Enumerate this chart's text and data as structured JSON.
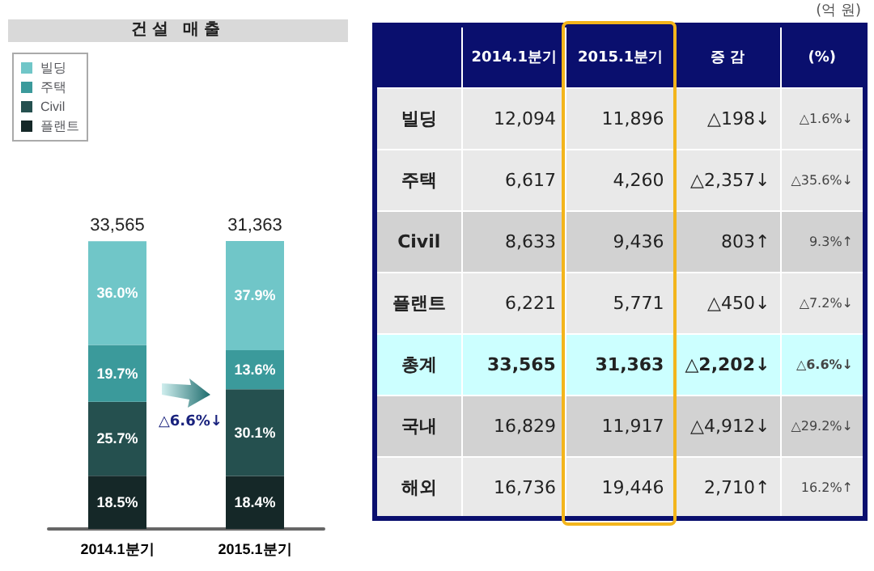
{
  "chart_data": [
    {
      "type": "bar",
      "title": "건설 매출",
      "categories": [
        "2014.1분기",
        "2015.1분기"
      ],
      "stacked": true,
      "legend": "top left",
      "series": [
        {
          "name": "플랜트",
          "color": "#152828",
          "values": [
            18.5,
            18.4
          ],
          "value_labels": [
            "18.5%",
            "18.4%"
          ]
        },
        {
          "name": "Civil",
          "color": "#25504f",
          "values": [
            25.7,
            30.1
          ],
          "value_labels": [
            "25.7%",
            "30.1%"
          ]
        },
        {
          "name": "주택",
          "color": "#3b9a9b",
          "values": [
            19.7,
            13.6
          ],
          "value_labels": [
            "19.7%",
            "13.6%"
          ]
        },
        {
          "name": "빌딩",
          "color": "#70c6c8",
          "values": [
            36.0,
            37.9
          ],
          "value_labels": [
            "36.0%",
            "37.9%"
          ]
        }
      ],
      "annotations": [
        "△6.6%↓",
        "33,565",
        "31,363"
      ]
    },
    {
      "type": "other",
      "annotations": [
        "(억 원)"
      ],
      "categories": [
        null,
        "2014.1분기",
        "2015.1분기",
        "증 감",
        "(%)"
      ],
      "y_categories": [
        "빌딩",
        "주택",
        "Civil",
        "플랜트",
        "총계",
        "국내",
        "해외"
      ],
      "cell_labels": [
        [
          "12,094",
          "11,896",
          "△198↓",
          "△1.6%↓"
        ],
        [
          "6,617",
          "4,260",
          "△2,357↓",
          "△35.6%↓"
        ],
        [
          "8,633",
          "9,436",
          "803↑",
          "9.3%↑"
        ],
        [
          "6,221",
          "5,771",
          "△450↓",
          "△7.2%↓"
        ],
        [
          "33,565",
          "31,363",
          "△2,202↓",
          "△6.6%↓"
        ],
        [
          "16,829",
          "11,917",
          "△4,912↓",
          "△29.2%↓"
        ],
        [
          "16,736",
          "19,446",
          "2,710↑",
          "16.2%↑"
        ]
      ]
    }
  ]
}
